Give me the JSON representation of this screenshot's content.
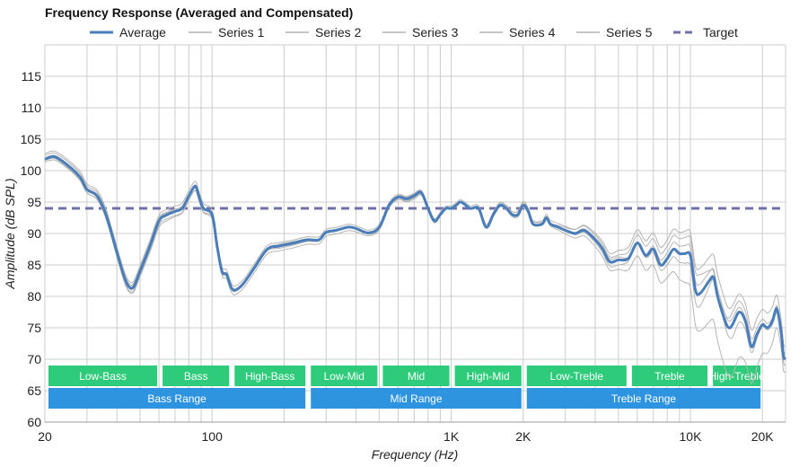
{
  "chart_data": {
    "type": "line",
    "title": "Frequency Response (Averaged and Compensated)",
    "xlabel": "Frequency (Hz)",
    "ylabel": "Amplitude (dB SPL)",
    "x_scale": "log",
    "xlim": [
      20,
      25000
    ],
    "ylim": [
      60,
      120
    ],
    "grid": true,
    "legend_position": "top",
    "x_tick_labels": [
      {
        "value": 20,
        "label": "20"
      },
      {
        "value": 100,
        "label": "100"
      },
      {
        "value": 1000,
        "label": "1K"
      },
      {
        "value": 2000,
        "label": "2K"
      },
      {
        "value": 10000,
        "label": "10K"
      },
      {
        "value": 20000,
        "label": "20K"
      }
    ],
    "y_ticks": [
      60,
      65,
      70,
      75,
      80,
      85,
      90,
      95,
      100,
      105,
      110,
      115
    ],
    "colors": {
      "average": "#4a7ebb",
      "series": "#b4b4b4",
      "target": "#7070a8",
      "band_green": "#2ecc7a",
      "band_blue": "#2e94e0",
      "grid": "#cccccc"
    },
    "legend": [
      {
        "name": "Average",
        "style": "average"
      },
      {
        "name": "Series 1",
        "style": "series"
      },
      {
        "name": "Series 2",
        "style": "series"
      },
      {
        "name": "Series 3",
        "style": "series"
      },
      {
        "name": "Series 4",
        "style": "series"
      },
      {
        "name": "Series 5",
        "style": "series"
      },
      {
        "name": "Target",
        "style": "target"
      }
    ],
    "target_level": 94,
    "average": {
      "name": "Average",
      "points": [
        [
          20,
          101.8
        ],
        [
          22,
          102.2
        ],
        [
          25,
          100.8
        ],
        [
          28,
          99
        ],
        [
          30,
          97
        ],
        [
          33,
          96
        ],
        [
          36,
          93
        ],
        [
          40,
          87
        ],
        [
          43,
          83
        ],
        [
          45,
          81.5
        ],
        [
          47,
          81.5
        ],
        [
          50,
          84
        ],
        [
          55,
          88
        ],
        [
          60,
          92
        ],
        [
          65,
          93
        ],
        [
          70,
          93.5
        ],
        [
          75,
          94
        ],
        [
          80,
          96
        ],
        [
          85,
          97.5
        ],
        [
          88,
          96
        ],
        [
          92,
          94
        ],
        [
          100,
          93
        ],
        [
          105,
          88
        ],
        [
          110,
          84
        ],
        [
          115,
          83.5
        ],
        [
          120,
          81.5
        ],
        [
          125,
          81
        ],
        [
          135,
          82
        ],
        [
          150,
          84.5
        ],
        [
          170,
          87.5
        ],
        [
          190,
          88
        ],
        [
          220,
          88.5
        ],
        [
          250,
          89
        ],
        [
          280,
          89
        ],
        [
          300,
          90.2
        ],
        [
          330,
          90.5
        ],
        [
          370,
          91
        ],
        [
          400,
          90.8
        ],
        [
          450,
          90.1
        ],
        [
          500,
          91
        ],
        [
          550,
          94.5
        ],
        [
          600,
          95.8
        ],
        [
          650,
          95.5
        ],
        [
          700,
          96
        ],
        [
          750,
          96.5
        ],
        [
          800,
          94
        ],
        [
          850,
          92
        ],
        [
          900,
          93
        ],
        [
          950,
          94
        ],
        [
          1000,
          94
        ],
        [
          1050,
          94.5
        ],
        [
          1100,
          95
        ],
        [
          1200,
          94
        ],
        [
          1300,
          94
        ],
        [
          1400,
          91
        ],
        [
          1500,
          93
        ],
        [
          1600,
          94.5
        ],
        [
          1700,
          94
        ],
        [
          1800,
          93
        ],
        [
          1900,
          93
        ],
        [
          2000,
          94.5
        ],
        [
          2100,
          93.5
        ],
        [
          2200,
          91.5
        ],
        [
          2400,
          91.5
        ],
        [
          2500,
          92.5
        ],
        [
          2600,
          91.5
        ],
        [
          2800,
          91
        ],
        [
          3000,
          90.5
        ],
        [
          3300,
          90
        ],
        [
          3600,
          90.5
        ],
        [
          4000,
          89
        ],
        [
          4300,
          87.5
        ],
        [
          4600,
          85.5
        ],
        [
          5000,
          85.8
        ],
        [
          5500,
          86
        ],
        [
          6000,
          88.5
        ],
        [
          6500,
          86.5
        ],
        [
          7000,
          87.5
        ],
        [
          7500,
          85
        ],
        [
          8000,
          86
        ],
        [
          8500,
          87.5
        ],
        [
          9000,
          86.8
        ],
        [
          9500,
          86.8
        ],
        [
          10000,
          86.5
        ],
        [
          10500,
          81
        ],
        [
          11000,
          80.5
        ],
        [
          12000,
          82.5
        ],
        [
          12500,
          83
        ],
        [
          13000,
          80
        ],
        [
          14000,
          76
        ],
        [
          14500,
          75
        ],
        [
          15000,
          75.5
        ],
        [
          16000,
          77.5
        ],
        [
          17000,
          76
        ],
        [
          18000,
          72
        ],
        [
          19000,
          74
        ],
        [
          20000,
          75.5
        ],
        [
          21000,
          75
        ],
        [
          22000,
          76
        ],
        [
          23000,
          78
        ],
        [
          24000,
          74
        ],
        [
          24500,
          70.5
        ],
        [
          25000,
          70
        ]
      ]
    },
    "series": [
      {
        "name": "Series 1",
        "offsets": [
          [
            20,
            0.6
          ],
          [
            60,
            0.5
          ],
          [
            200,
            -0.4
          ],
          [
            700,
            0.3
          ],
          [
            2000,
            0.5
          ],
          [
            5000,
            0.8
          ],
          [
            8000,
            2
          ],
          [
            11000,
            3
          ],
          [
            15000,
            -2
          ],
          [
            25000,
            1
          ]
        ]
      },
      {
        "name": "Series 2",
        "offsets": [
          [
            20,
            -0.5
          ],
          [
            60,
            -0.6
          ],
          [
            200,
            -0.8
          ],
          [
            700,
            -0.3
          ],
          [
            2000,
            0.2
          ],
          [
            5000,
            -1.5
          ],
          [
            8000,
            -3
          ],
          [
            11000,
            -6
          ],
          [
            15000,
            -8
          ],
          [
            25000,
            -2
          ]
        ]
      },
      {
        "name": "Series 3",
        "offsets": [
          [
            20,
            0.9
          ],
          [
            60,
            0.9
          ],
          [
            200,
            0.5
          ],
          [
            700,
            0.4
          ],
          [
            2000,
            -0.4
          ],
          [
            5000,
            1.5
          ],
          [
            8000,
            3
          ],
          [
            11000,
            4
          ],
          [
            15000,
            3
          ],
          [
            25000,
            2
          ]
        ]
      },
      {
        "name": "Series 4",
        "offsets": [
          [
            20,
            -0.2
          ],
          [
            60,
            -1.0
          ],
          [
            200,
            0.3
          ],
          [
            700,
            -0.5
          ],
          [
            2000,
            0.6
          ],
          [
            5000,
            -0.8
          ],
          [
            8000,
            1
          ],
          [
            11000,
            1.5
          ],
          [
            15000,
            1
          ],
          [
            25000,
            -1
          ]
        ]
      },
      {
        "name": "Series 5",
        "offsets": [
          [
            20,
            0.2
          ],
          [
            60,
            0.3
          ],
          [
            200,
            -0.2
          ],
          [
            700,
            0.1
          ],
          [
            2000,
            -0.2
          ],
          [
            5000,
            0.5
          ],
          [
            8000,
            -1
          ],
          [
            11000,
            -2
          ],
          [
            15000,
            2
          ],
          [
            25000,
            0
          ]
        ]
      }
    ],
    "band_rows": [
      {
        "color": "band_green",
        "bands": [
          {
            "label": "Low-Bass",
            "from": 20,
            "to": 60
          },
          {
            "label": "Bass",
            "from": 60,
            "to": 120
          },
          {
            "label": "High-Bass",
            "from": 120,
            "to": 250
          },
          {
            "label": "Low-Mid",
            "from": 250,
            "to": 500
          },
          {
            "label": "Mid",
            "from": 500,
            "to": 1000
          },
          {
            "label": "High-Mid",
            "from": 1000,
            "to": 2000
          },
          {
            "label": "Low-Treble",
            "from": 2000,
            "to": 5500
          },
          {
            "label": "Treble",
            "from": 5500,
            "to": 12000
          },
          {
            "label": "High-Treble",
            "from": 12000,
            "to": 20000
          }
        ]
      },
      {
        "color": "band_blue",
        "bands": [
          {
            "label": "Bass Range",
            "from": 20,
            "to": 250
          },
          {
            "label": "Mid Range",
            "from": 250,
            "to": 2000
          },
          {
            "label": "Treble Range",
            "from": 2000,
            "to": 20000
          }
        ]
      }
    ]
  }
}
